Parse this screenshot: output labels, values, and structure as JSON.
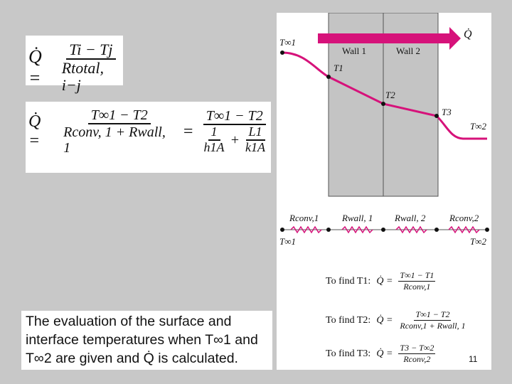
{
  "equations": {
    "eq1_lhs": "Q̇ =",
    "eq1_num": "Ti − Tj",
    "eq1_den": "Rtotal, i−j",
    "eq2_lhs": "Q̇ =",
    "eq2_num": "T∞1 − T2",
    "eq2_den": "Rconv, 1 + Rwall, 1",
    "eq2_eq": "=",
    "eq2_num2": "T∞1 − T2",
    "eq2_den2_a_num": "1",
    "eq2_den2_a_den": "h1A",
    "eq2_den2_plus": "+",
    "eq2_den2_b_num": "L1",
    "eq2_den2_b_den": "k1A"
  },
  "caption": {
    "line1": "The evaluation of the surface and",
    "line2": "interface temperatures when T∞1 and",
    "line3": "T∞2 are given and Q̇ is calculated."
  },
  "figure": {
    "heat_flow_label": "Q̇",
    "wall1": "Wall 1",
    "wall2": "Wall 2",
    "t_inf1": "T∞1",
    "t1": "T1",
    "t2": "T2",
    "t3": "T3",
    "t_inf2": "T∞2",
    "r_conv1": "Rconv,1",
    "r_wall1": "Rwall, 1",
    "r_wall2": "Rwall, 2",
    "r_conv2": "Rconv,2",
    "node_left": "T∞1",
    "node_right": "T∞2"
  },
  "find": [
    {
      "label": "To find T1:",
      "lhs": "Q̇ =",
      "num": "T∞1 − T1",
      "den": "Rconv,1"
    },
    {
      "label": "To find T2:",
      "lhs": "Q̇ =",
      "num": "T∞1 − T2",
      "den": "Rconv,1 + Rwall, 1"
    },
    {
      "label": "To find T3:",
      "lhs": "Q̇ =",
      "num": "T3 − T∞2",
      "den": "Rconv,2"
    }
  ],
  "slide_number": "11",
  "colors": {
    "curve": "#d6127a",
    "wall": "#c4c4c4",
    "background": "#c8c8c8"
  }
}
